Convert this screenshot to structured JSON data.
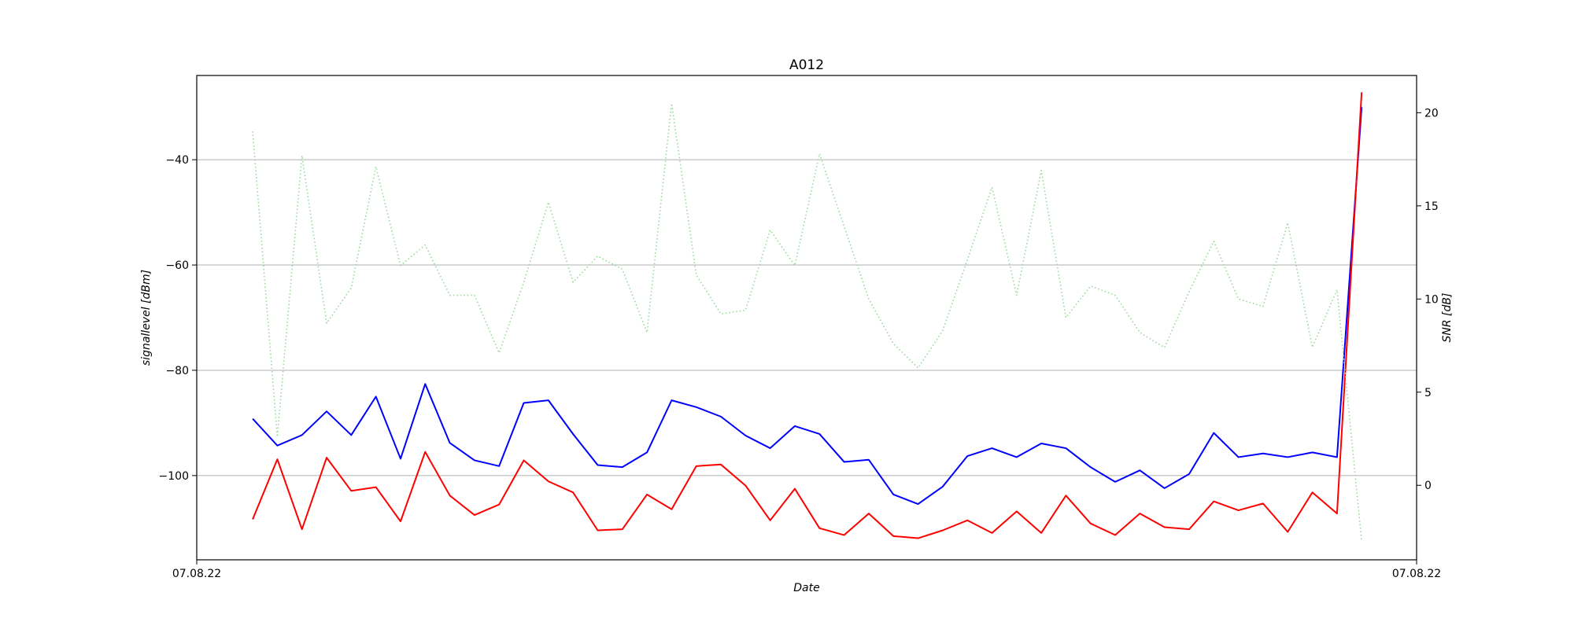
{
  "chart_data": {
    "type": "line",
    "title": "A012",
    "xlabel": "Date",
    "ylabel_left": "signallevel [dBm]",
    "ylabel_right": "SNR [dB]",
    "x_tick_labels": [
      "07.08.22",
      "07.08.22"
    ],
    "x": [
      0,
      1,
      2,
      3,
      4,
      5,
      6,
      7,
      8,
      9,
      10,
      11,
      12,
      13,
      14,
      15,
      16,
      17,
      18,
      19,
      20,
      21,
      22,
      23,
      24,
      25,
      26,
      27,
      28,
      29,
      30,
      31,
      32,
      33,
      34,
      35,
      36,
      37,
      38,
      39,
      40,
      41,
      42,
      43,
      44,
      45
    ],
    "xlim": [
      -2.27,
      47.23
    ],
    "ylim_left": [
      -116,
      -24
    ],
    "ylim_right": [
      -4,
      22
    ],
    "yticks_left": [
      -40,
      -60,
      -80,
      -100
    ],
    "yticks_right": [
      20,
      15,
      10,
      5,
      0
    ],
    "grid": "horizontal at left axis ticks",
    "series": [
      {
        "axis": "left",
        "color": "#0000ff",
        "style": "solid",
        "values": [
          -89.2,
          -94.3,
          -92.3,
          -87.8,
          -92.3,
          -85.0,
          -96.8,
          -82.6,
          -93.8,
          -97.1,
          -98.2,
          -86.2,
          -85.7,
          -92.1,
          -98.0,
          -98.4,
          -95.6,
          -85.7,
          -87.0,
          -88.8,
          -92.4,
          -94.8,
          -90.6,
          -92.1,
          -97.4,
          -97.0,
          -103.6,
          -105.4,
          -102.1,
          -96.3,
          -94.8,
          -96.5,
          -93.9,
          -94.8,
          -98.4,
          -101.2,
          -99.0,
          -102.4,
          -99.7,
          -91.9,
          -96.5,
          -95.8,
          -96.5,
          -95.6,
          -96.5,
          -30.0
        ]
      },
      {
        "axis": "left",
        "color": "#ff0000",
        "style": "solid",
        "values": [
          -108.3,
          -96.9,
          -110.2,
          -96.6,
          -102.9,
          -102.2,
          -108.7,
          -95.5,
          -103.8,
          -107.5,
          -105.5,
          -97.1,
          -101.1,
          -103.2,
          -110.4,
          -110.2,
          -103.6,
          -106.4,
          -98.2,
          -97.9,
          -101.9,
          -108.5,
          -102.5,
          -110.0,
          -111.3,
          -107.2,
          -111.5,
          -111.9,
          -110.4,
          -108.5,
          -110.9,
          -106.8,
          -110.9,
          -103.8,
          -109.1,
          -111.3,
          -107.2,
          -109.8,
          -110.2,
          -104.9,
          -106.6,
          -105.3,
          -110.7,
          -103.2,
          -107.2,
          -27.2
        ]
      },
      {
        "axis": "right",
        "color": "#98d898",
        "style": "dotted",
        "values": [
          19.0,
          2.6,
          17.7,
          8.7,
          10.6,
          17.1,
          11.8,
          12.9,
          10.2,
          10.2,
          7.1,
          10.9,
          15.2,
          10.9,
          12.3,
          11.6,
          8.2,
          20.5,
          11.3,
          9.2,
          9.4,
          13.7,
          11.8,
          17.8,
          13.9,
          10.0,
          7.6,
          6.3,
          8.3,
          12.1,
          16.0,
          10.2,
          16.9,
          9.0,
          10.7,
          10.2,
          8.2,
          7.4,
          10.4,
          13.1,
          10.0,
          9.6,
          14.1,
          7.4,
          10.5,
          -3.0
        ]
      }
    ]
  }
}
